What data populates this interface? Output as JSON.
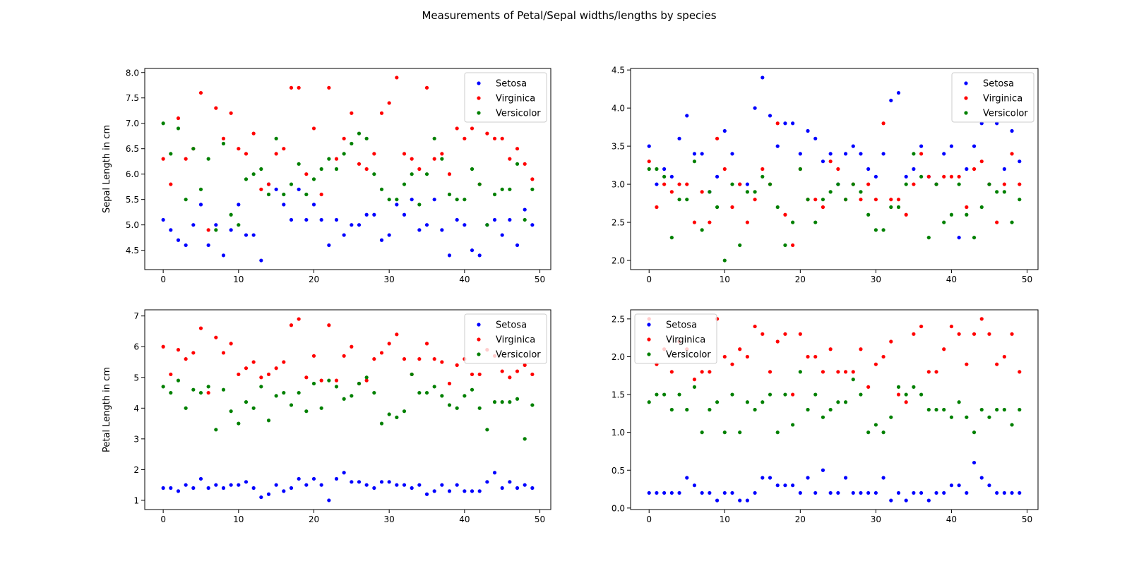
{
  "figure": {
    "title": "Measurements of Petal/Sepal widths/lengths by species"
  },
  "chart_data": [
    {
      "type": "scatter",
      "title": "",
      "xlabel": "",
      "ylabel": "Sepal Length in cm",
      "xlim": [
        -2.45,
        51.45
      ],
      "ylim": [
        4.12,
        8.08
      ],
      "xticks": [
        0,
        10,
        20,
        30,
        40,
        50
      ],
      "yticks": [
        4.5,
        5.0,
        5.5,
        6.0,
        6.5,
        7.0,
        7.5,
        8.0
      ],
      "ytick_labels": [
        "4.5",
        "5.0",
        "5.5",
        "6.0",
        "6.5",
        "7.0",
        "7.5",
        "8.0"
      ],
      "legend_position": "upper right",
      "grid": false,
      "series": [
        {
          "name": "Setosa",
          "color": "#0000ff",
          "values": [
            5.1,
            4.9,
            4.7,
            4.6,
            5.0,
            5.4,
            4.6,
            5.0,
            4.4,
            4.9,
            5.4,
            4.8,
            4.8,
            4.3,
            5.8,
            5.7,
            5.4,
            5.1,
            5.7,
            5.1,
            5.4,
            5.1,
            4.6,
            5.1,
            4.8,
            5.0,
            5.0,
            5.2,
            5.2,
            4.7,
            4.8,
            5.4,
            5.2,
            5.5,
            4.9,
            5.0,
            5.5,
            4.9,
            4.4,
            5.1,
            5.0,
            4.5,
            4.4,
            5.0,
            5.1,
            4.8,
            5.1,
            4.6,
            5.3,
            5.0
          ]
        },
        {
          "name": "Virginica",
          "color": "#ff0000",
          "values": [
            6.3,
            5.8,
            7.1,
            6.3,
            6.5,
            7.6,
            4.9,
            7.3,
            6.7,
            7.2,
            6.5,
            6.4,
            6.8,
            5.7,
            5.8,
            6.4,
            6.5,
            7.7,
            7.7,
            6.0,
            6.9,
            5.6,
            7.7,
            6.3,
            6.7,
            7.2,
            6.2,
            6.1,
            6.4,
            7.2,
            7.4,
            7.9,
            6.4,
            6.3,
            6.1,
            7.7,
            6.3,
            6.4,
            6.0,
            6.9,
            6.7,
            6.9,
            5.8,
            6.8,
            6.7,
            6.7,
            6.3,
            6.5,
            6.2,
            5.9
          ]
        },
        {
          "name": "Versicolor",
          "color": "#008000",
          "values": [
            7.0,
            6.4,
            6.9,
            5.5,
            6.5,
            5.7,
            6.3,
            4.9,
            6.6,
            5.2,
            5.0,
            5.9,
            6.0,
            6.1,
            5.6,
            6.7,
            5.6,
            5.8,
            6.2,
            5.6,
            5.9,
            6.1,
            6.3,
            6.1,
            6.4,
            6.6,
            6.8,
            6.7,
            6.0,
            5.7,
            5.5,
            5.5,
            5.8,
            6.0,
            5.4,
            6.0,
            6.7,
            6.3,
            5.6,
            5.5,
            5.5,
            6.1,
            5.8,
            5.0,
            5.6,
            5.7,
            5.7,
            6.2,
            5.1,
            5.7
          ]
        }
      ]
    },
    {
      "type": "scatter",
      "title": "",
      "xlabel": "",
      "ylabel": "",
      "xlim": [
        -2.45,
        51.45
      ],
      "ylim": [
        1.88,
        4.52
      ],
      "xticks": [
        0,
        10,
        20,
        30,
        40,
        50
      ],
      "yticks": [
        2.0,
        2.5,
        3.0,
        3.5,
        4.0,
        4.5
      ],
      "ytick_labels": [
        "2.0",
        "2.5",
        "3.0",
        "3.5",
        "4.0",
        "4.5"
      ],
      "legend_position": "upper right",
      "grid": false,
      "series": [
        {
          "name": "Setosa",
          "color": "#0000ff",
          "values": [
            3.5,
            3.0,
            3.2,
            3.1,
            3.6,
            3.9,
            3.4,
            3.4,
            2.9,
            3.1,
            3.7,
            3.4,
            3.0,
            3.0,
            4.0,
            4.4,
            3.9,
            3.5,
            3.8,
            3.8,
            3.4,
            3.7,
            3.6,
            3.3,
            3.4,
            3.0,
            3.4,
            3.5,
            3.4,
            3.2,
            3.1,
            3.4,
            4.1,
            4.2,
            3.1,
            3.2,
            3.5,
            3.1,
            3.0,
            3.4,
            3.5,
            2.3,
            3.2,
            3.5,
            3.8,
            3.0,
            3.8,
            3.2,
            3.7,
            3.3
          ]
        },
        {
          "name": "Virginica",
          "color": "#ff0000",
          "values": [
            3.3,
            2.7,
            3.0,
            2.9,
            3.0,
            3.0,
            2.5,
            2.9,
            2.5,
            3.6,
            3.2,
            2.7,
            3.0,
            2.5,
            2.8,
            3.2,
            3.0,
            3.8,
            2.6,
            2.2,
            3.2,
            2.8,
            2.8,
            2.7,
            3.3,
            3.2,
            2.8,
            3.0,
            2.8,
            3.0,
            2.8,
            3.8,
            2.8,
            2.8,
            2.6,
            3.0,
            3.4,
            3.1,
            3.0,
            3.1,
            3.1,
            3.1,
            2.7,
            3.2,
            3.3,
            3.0,
            2.5,
            3.0,
            3.4,
            3.0
          ]
        },
        {
          "name": "Versicolor",
          "color": "#008000",
          "values": [
            3.2,
            3.2,
            3.1,
            2.3,
            2.8,
            2.8,
            3.3,
            2.4,
            2.9,
            2.7,
            2.0,
            3.0,
            2.2,
            2.9,
            2.9,
            3.1,
            3.0,
            2.7,
            2.2,
            2.5,
            3.2,
            2.8,
            2.5,
            2.8,
            2.9,
            3.0,
            2.8,
            3.0,
            2.9,
            2.6,
            2.4,
            2.4,
            2.7,
            2.7,
            3.0,
            3.4,
            3.1,
            2.3,
            3.0,
            2.5,
            2.6,
            3.0,
            2.6,
            2.3,
            2.7,
            3.0,
            2.9,
            2.9,
            2.5,
            2.8
          ]
        }
      ]
    },
    {
      "type": "scatter",
      "title": "",
      "xlabel": "",
      "ylabel": "Petal Length in cm",
      "xlim": [
        -2.45,
        51.45
      ],
      "ylim": [
        0.7,
        7.2
      ],
      "xticks": [
        0,
        10,
        20,
        30,
        40,
        50
      ],
      "yticks": [
        1,
        2,
        3,
        4,
        5,
        6,
        7
      ],
      "ytick_labels": [
        "1",
        "2",
        "3",
        "4",
        "5",
        "6",
        "7"
      ],
      "legend_position": "upper right",
      "grid": false,
      "series": [
        {
          "name": "Setosa",
          "color": "#0000ff",
          "values": [
            1.4,
            1.4,
            1.3,
            1.5,
            1.4,
            1.7,
            1.4,
            1.5,
            1.4,
            1.5,
            1.5,
            1.6,
            1.4,
            1.1,
            1.2,
            1.5,
            1.3,
            1.4,
            1.7,
            1.5,
            1.7,
            1.5,
            1.0,
            1.7,
            1.9,
            1.6,
            1.6,
            1.5,
            1.4,
            1.6,
            1.6,
            1.5,
            1.5,
            1.4,
            1.5,
            1.2,
            1.3,
            1.5,
            1.3,
            1.5,
            1.3,
            1.3,
            1.3,
            1.6,
            1.9,
            1.4,
            1.6,
            1.4,
            1.5,
            1.4
          ]
        },
        {
          "name": "Virginica",
          "color": "#ff0000",
          "values": [
            6.0,
            5.1,
            5.9,
            5.6,
            5.8,
            6.6,
            4.5,
            6.3,
            5.8,
            6.1,
            5.1,
            5.3,
            5.5,
            5.0,
            5.1,
            5.3,
            5.5,
            6.7,
            6.9,
            5.0,
            5.7,
            4.9,
            6.7,
            4.9,
            5.7,
            6.0,
            4.8,
            4.9,
            5.6,
            5.8,
            6.1,
            6.4,
            5.6,
            5.1,
            5.6,
            6.1,
            5.6,
            5.5,
            4.8,
            5.4,
            5.6,
            5.1,
            5.1,
            5.9,
            5.7,
            5.2,
            5.0,
            5.2,
            5.4,
            5.1
          ]
        },
        {
          "name": "Versicolor",
          "color": "#008000",
          "values": [
            4.7,
            4.5,
            4.9,
            4.0,
            4.6,
            4.5,
            4.7,
            3.3,
            4.6,
            3.9,
            3.5,
            4.2,
            4.0,
            4.7,
            3.6,
            4.4,
            4.5,
            4.1,
            4.5,
            3.9,
            4.8,
            4.0,
            4.9,
            4.7,
            4.3,
            4.4,
            4.8,
            5.0,
            4.5,
            3.5,
            3.8,
            3.7,
            3.9,
            5.1,
            4.5,
            4.5,
            4.7,
            4.4,
            4.1,
            4.0,
            4.4,
            4.6,
            4.0,
            3.3,
            4.2,
            4.2,
            4.2,
            4.3,
            3.0,
            4.1
          ]
        }
      ]
    },
    {
      "type": "scatter",
      "title": "",
      "xlabel": "",
      "ylabel": "",
      "xlim": [
        -2.45,
        51.45
      ],
      "ylim": [
        -0.02,
        2.62
      ],
      "xticks": [
        0,
        10,
        20,
        30,
        40,
        50
      ],
      "yticks": [
        0.0,
        0.5,
        1.0,
        1.5,
        2.0,
        2.5
      ],
      "ytick_labels": [
        "0.0",
        "0.5",
        "1.0",
        "1.5",
        "2.0",
        "2.5"
      ],
      "legend_position": "upper left",
      "grid": false,
      "series": [
        {
          "name": "Setosa",
          "color": "#0000ff",
          "values": [
            0.2,
            0.2,
            0.2,
            0.2,
            0.2,
            0.4,
            0.3,
            0.2,
            0.2,
            0.1,
            0.2,
            0.2,
            0.1,
            0.1,
            0.2,
            0.4,
            0.4,
            0.3,
            0.3,
            0.3,
            0.2,
            0.4,
            0.2,
            0.5,
            0.2,
            0.2,
            0.4,
            0.2,
            0.2,
            0.2,
            0.2,
            0.4,
            0.1,
            0.2,
            0.1,
            0.2,
            0.2,
            0.1,
            0.2,
            0.2,
            0.3,
            0.3,
            0.2,
            0.6,
            0.4,
            0.3,
            0.2,
            0.2,
            0.2,
            0.2
          ]
        },
        {
          "name": "Virginica",
          "color": "#ff0000",
          "values": [
            2.5,
            1.9,
            2.1,
            1.8,
            2.2,
            2.1,
            1.7,
            1.8,
            1.8,
            2.5,
            2.0,
            1.9,
            2.1,
            2.0,
            2.4,
            2.3,
            1.8,
            2.2,
            2.3,
            1.5,
            2.3,
            2.0,
            2.0,
            1.8,
            2.1,
            1.8,
            1.8,
            1.8,
            2.1,
            1.6,
            1.9,
            2.0,
            2.2,
            1.5,
            1.4,
            2.3,
            2.4,
            1.8,
            1.8,
            2.1,
            2.4,
            2.3,
            1.9,
            2.3,
            2.5,
            2.3,
            1.9,
            2.0,
            2.3,
            1.8
          ]
        },
        {
          "name": "Versicolor",
          "color": "#008000",
          "values": [
            1.4,
            1.5,
            1.5,
            1.3,
            1.5,
            1.3,
            1.6,
            1.0,
            1.3,
            1.4,
            1.0,
            1.5,
            1.0,
            1.4,
            1.3,
            1.4,
            1.5,
            1.0,
            1.5,
            1.1,
            1.8,
            1.3,
            1.5,
            1.2,
            1.3,
            1.4,
            1.4,
            1.7,
            1.5,
            1.0,
            1.1,
            1.0,
            1.2,
            1.6,
            1.5,
            1.6,
            1.5,
            1.3,
            1.3,
            1.3,
            1.2,
            1.4,
            1.2,
            1.0,
            1.3,
            1.2,
            1.3,
            1.3,
            1.1,
            1.3
          ]
        }
      ]
    }
  ]
}
